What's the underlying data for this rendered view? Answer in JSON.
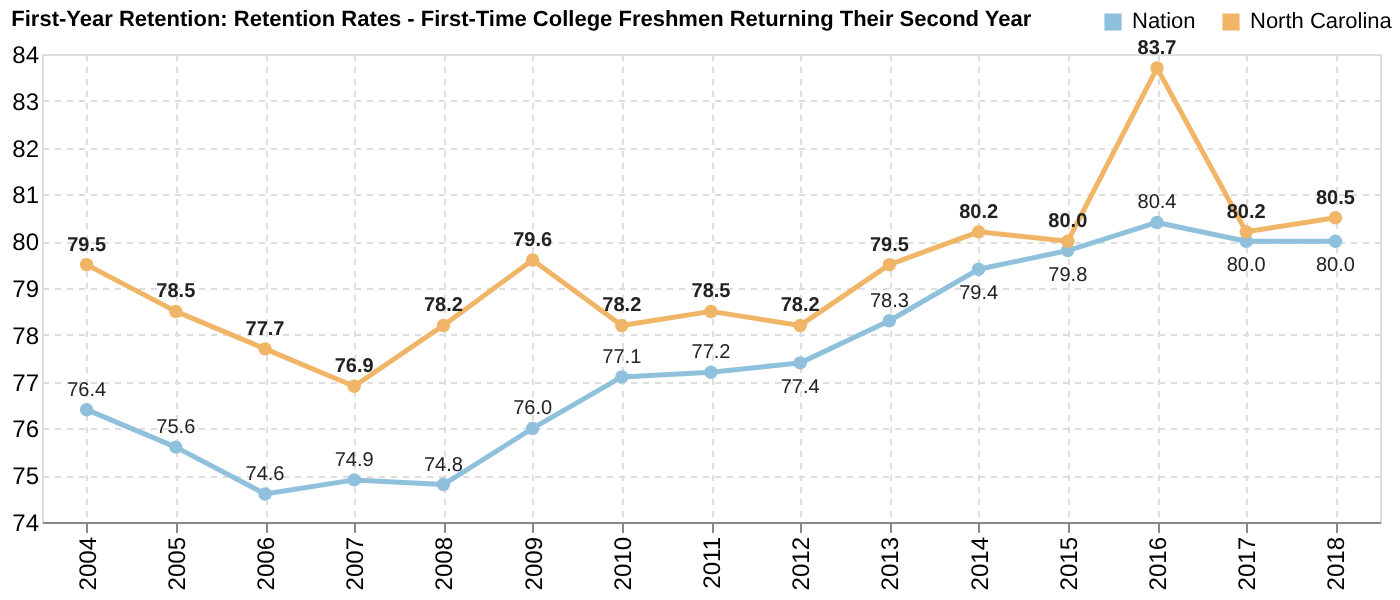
{
  "chart_data": {
    "type": "line",
    "title": "First-Year Retention: Retention Rates - First-Time College Freshmen Returning Their Second Year",
    "categories": [
      "2004",
      "2005",
      "2006",
      "2007",
      "2008",
      "2009",
      "2010",
      "2011",
      "2012",
      "2013",
      "2014",
      "2015",
      "2016",
      "2017",
      "2018"
    ],
    "series": [
      {
        "name": "Nation",
        "color": "#8fc0dc",
        "values": [
          76.4,
          75.6,
          74.6,
          74.9,
          74.8,
          76.0,
          77.1,
          77.2,
          77.4,
          78.3,
          79.4,
          79.8,
          80.4,
          80.0,
          80.0
        ],
        "value_labels": [
          "76.4",
          "75.6",
          "74.6",
          "74.9",
          "74.8",
          "76.0",
          "77.1",
          "77.2",
          "77.4",
          "78.3",
          "79.4",
          "79.8",
          "80.4",
          "80.0",
          "80.0"
        ]
      },
      {
        "name": "North Carolina",
        "color": "#f0b566",
        "values": [
          79.5,
          78.5,
          77.7,
          76.9,
          78.2,
          79.6,
          78.2,
          78.5,
          78.2,
          79.5,
          80.2,
          80.0,
          83.7,
          80.2,
          80.5
        ],
        "value_labels": [
          "79.5",
          "78.5",
          "77.7",
          "76.9",
          "78.2",
          "79.6",
          "78.2",
          "78.5",
          "78.2",
          "79.5",
          "80.2",
          "80.0",
          "83.7",
          "80.2",
          "80.5"
        ]
      }
    ],
    "ylim": [
      74,
      84
    ],
    "yticks": [
      74,
      75,
      76,
      77,
      78,
      79,
      80,
      81,
      82,
      83,
      84
    ],
    "grid": true,
    "legend": "top right",
    "marker": "circle",
    "line_style": "solid"
  }
}
